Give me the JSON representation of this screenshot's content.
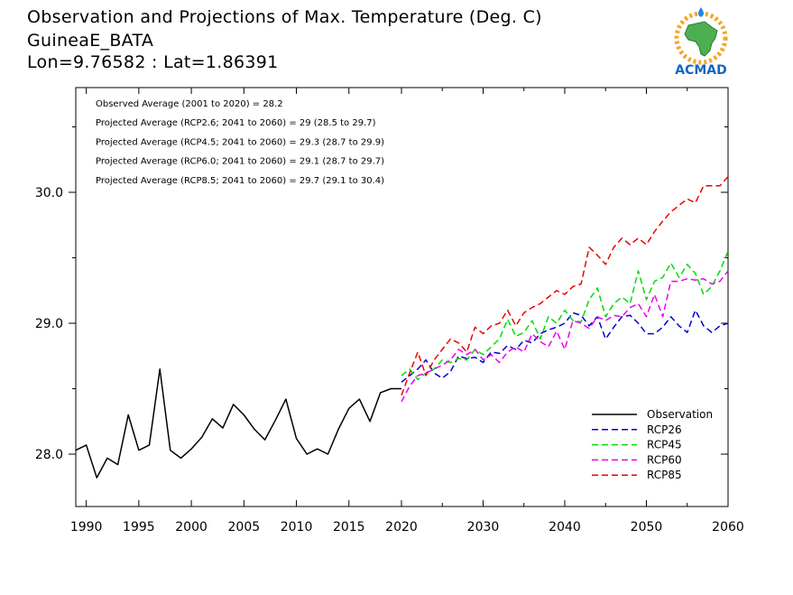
{
  "header": {
    "title": "Observation and Projections of Max. Temperature (Deg. C)",
    "location": "GuineaE_BATA",
    "coords": "Lon=9.76582 : Lat=1.86391"
  },
  "logo": {
    "text": "ACMAD"
  },
  "chart_data": {
    "type": "line",
    "title": "Observation and Projections of Max. Temperature (Deg. C)",
    "xlabel": "",
    "ylabel": "",
    "xlim": [
      1989,
      2060
    ],
    "ylim": [
      27.6,
      30.8
    ],
    "x_ticks": [
      1990,
      1995,
      2000,
      2005,
      2010,
      2015,
      2020,
      2030,
      2040,
      2050,
      2060
    ],
    "y_ticks": [
      28.0,
      29.0,
      30.0
    ],
    "y_tick_labels": [
      "28.0",
      "29.0",
      "30.0"
    ],
    "annotations": [
      "Observed Average (2001 to 2020) = 28.2",
      "Projected Average (RCP2.6; 2041 to 2060) = 29 (28.5 to 29.7)",
      "Projected Average (RCP4.5; 2041 to 2060) = 29.3 (28.7 to 29.9)",
      "Projected Average (RCP6.0; 2041 to 2060) = 29.1 (28.7 to 29.7)",
      "Projected Average (RCP8.5; 2041 to 2060) = 29.7 (29.1 to 30.4)"
    ],
    "legend_position": "bottom-right",
    "series": [
      {
        "name": "Observation",
        "color": "#000000",
        "dash": false,
        "x": [
          1989,
          1990,
          1991,
          1992,
          1993,
          1994,
          1995,
          1996,
          1997,
          1998,
          1999,
          2000,
          2001,
          2002,
          2003,
          2004,
          2005,
          2006,
          2007,
          2008,
          2009,
          2010,
          2011,
          2012,
          2013,
          2014,
          2015,
          2016,
          2017,
          2018,
          2019,
          2020
        ],
        "y": [
          28.03,
          28.07,
          27.82,
          27.97,
          27.92,
          28.3,
          28.03,
          28.07,
          28.65,
          28.03,
          27.97,
          28.04,
          28.13,
          28.27,
          28.2,
          28.38,
          28.3,
          28.19,
          28.11,
          28.26,
          28.42,
          28.12,
          28.0,
          28.04,
          28.0,
          28.19,
          28.35,
          28.42,
          28.25,
          28.47,
          28.5,
          28.5
        ]
      },
      {
        "name": "RCP26",
        "color": "#0000cc",
        "dash": true,
        "x": [
          2020,
          2021,
          2022,
          2023,
          2024,
          2025,
          2026,
          2027,
          2028,
          2029,
          2030,
          2031,
          2032,
          2033,
          2034,
          2035,
          2036,
          2037,
          2038,
          2039,
          2040,
          2041,
          2042,
          2043,
          2044,
          2045,
          2046,
          2047,
          2048,
          2049,
          2050,
          2051,
          2052,
          2053,
          2054,
          2055,
          2056,
          2057,
          2058,
          2059,
          2060
        ],
        "y": [
          28.55,
          28.6,
          28.65,
          28.72,
          28.62,
          28.58,
          28.63,
          28.75,
          28.73,
          28.74,
          28.7,
          28.78,
          28.77,
          28.83,
          28.8,
          28.87,
          28.85,
          28.92,
          28.95,
          28.97,
          29.0,
          29.08,
          29.06,
          28.98,
          29.05,
          28.88,
          28.97,
          29.05,
          29.06,
          29.0,
          28.92,
          28.92,
          28.97,
          29.05,
          28.98,
          28.93,
          29.1,
          28.98,
          28.93,
          28.98,
          29.0
        ]
      },
      {
        "name": "RCP45",
        "color": "#00dd00",
        "dash": true,
        "x": [
          2020,
          2021,
          2022,
          2023,
          2024,
          2025,
          2026,
          2027,
          2028,
          2029,
          2030,
          2031,
          2032,
          2033,
          2034,
          2035,
          2036,
          2037,
          2038,
          2039,
          2040,
          2041,
          2042,
          2043,
          2044,
          2045,
          2046,
          2047,
          2048,
          2049,
          2050,
          2051,
          2052,
          2053,
          2054,
          2055,
          2056,
          2057,
          2058,
          2059,
          2060
        ],
        "y": [
          28.6,
          28.65,
          28.57,
          28.62,
          28.65,
          28.72,
          28.7,
          28.73,
          28.72,
          28.8,
          28.76,
          28.82,
          28.88,
          29.03,
          28.9,
          28.93,
          29.02,
          28.88,
          29.05,
          29.0,
          29.1,
          29.02,
          29.01,
          29.18,
          29.27,
          29.05,
          29.15,
          29.2,
          29.15,
          29.4,
          29.18,
          29.32,
          29.35,
          29.46,
          29.35,
          29.45,
          29.38,
          29.22,
          29.28,
          29.4,
          29.55
        ]
      },
      {
        "name": "RCP60",
        "color": "#ee00ee",
        "dash": true,
        "x": [
          2020,
          2021,
          2022,
          2023,
          2024,
          2025,
          2026,
          2027,
          2028,
          2029,
          2030,
          2031,
          2032,
          2033,
          2034,
          2035,
          2036,
          2037,
          2038,
          2039,
          2040,
          2041,
          2042,
          2043,
          2044,
          2045,
          2046,
          2047,
          2048,
          2049,
          2050,
          2051,
          2052,
          2053,
          2054,
          2055,
          2056,
          2057,
          2058,
          2059,
          2060
        ],
        "y": [
          28.4,
          28.52,
          28.6,
          28.62,
          28.65,
          28.68,
          28.72,
          28.8,
          28.76,
          28.8,
          28.72,
          28.76,
          28.7,
          28.78,
          28.82,
          28.78,
          28.92,
          28.86,
          28.82,
          28.94,
          28.8,
          29.02,
          29.0,
          28.96,
          29.05,
          29.02,
          29.06,
          29.05,
          29.12,
          29.15,
          29.05,
          29.22,
          29.05,
          29.32,
          29.32,
          29.34,
          29.33,
          29.34,
          29.3,
          29.32,
          29.4
        ]
      },
      {
        "name": "RCP85",
        "color": "#ee0000",
        "dash": true,
        "x": [
          2020,
          2021,
          2022,
          2023,
          2024,
          2025,
          2026,
          2027,
          2028,
          2029,
          2030,
          2031,
          2032,
          2033,
          2034,
          2035,
          2036,
          2037,
          2038,
          2039,
          2040,
          2041,
          2042,
          2043,
          2044,
          2045,
          2046,
          2047,
          2048,
          2049,
          2050,
          2051,
          2052,
          2053,
          2054,
          2055,
          2056,
          2057,
          2058,
          2059,
          2060
        ],
        "y": [
          28.45,
          28.62,
          28.78,
          28.6,
          28.72,
          28.8,
          28.88,
          28.85,
          28.78,
          28.97,
          28.92,
          28.98,
          29.0,
          29.1,
          28.98,
          29.08,
          29.12,
          29.15,
          29.2,
          29.25,
          29.22,
          29.28,
          29.3,
          29.58,
          29.52,
          29.45,
          29.58,
          29.65,
          29.6,
          29.65,
          29.6,
          29.7,
          29.78,
          29.85,
          29.9,
          29.95,
          29.92,
          30.05,
          30.05,
          30.05,
          30.12
        ]
      }
    ]
  }
}
